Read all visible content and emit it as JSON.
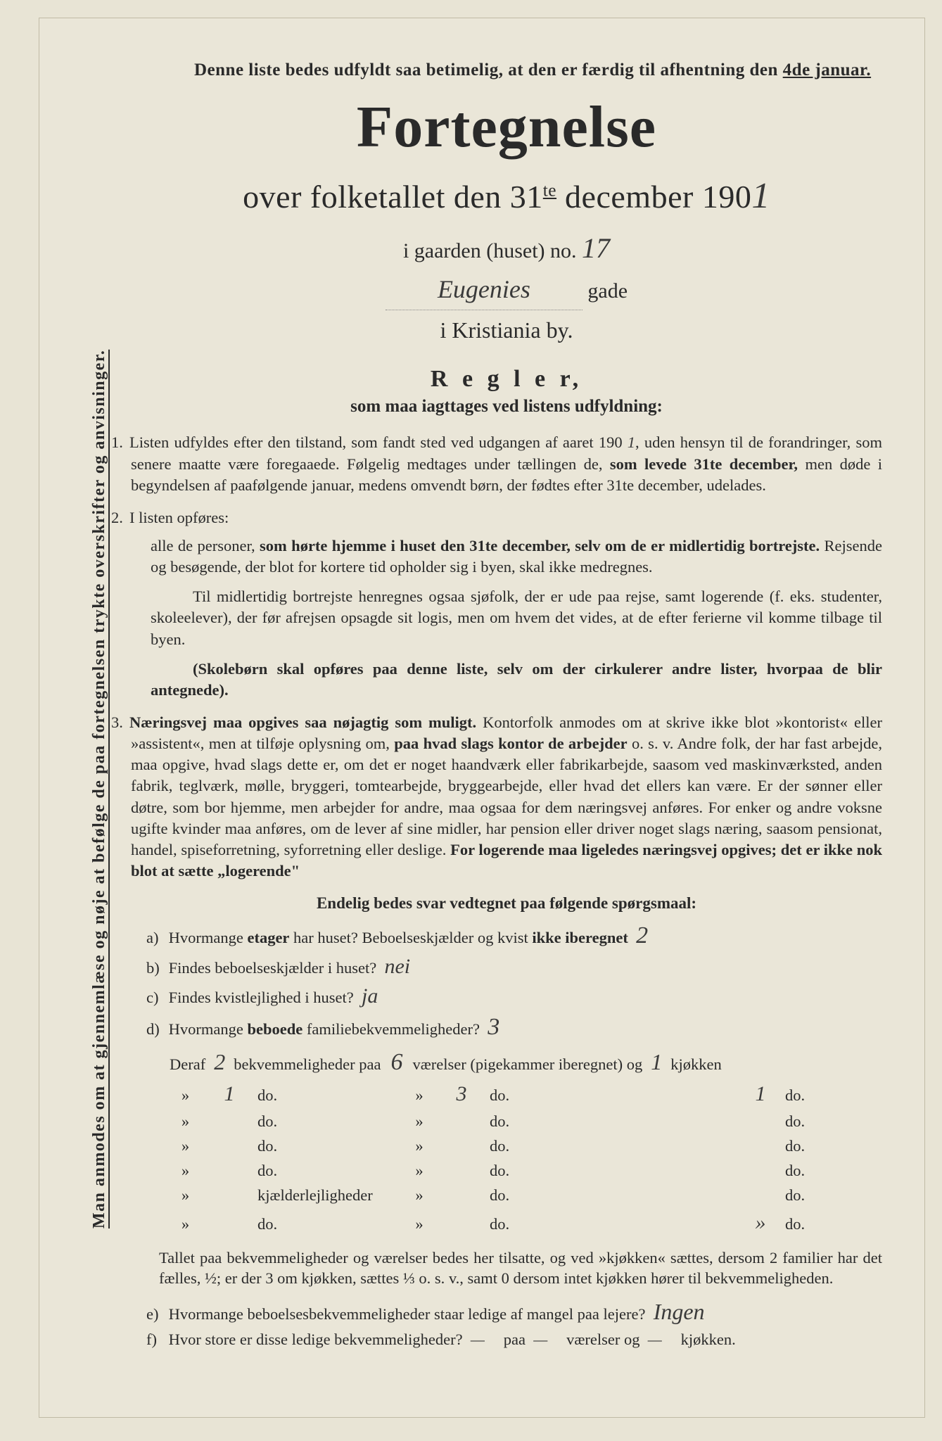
{
  "colors": {
    "paper": "#eae6d8",
    "ink": "#2a2a2a",
    "pencil": "#3a3a3a"
  },
  "sidenote": "Man anmodes om at gjennemlæse og nøje at befølge de paa fortegnelsen trykte overskrifter og anvisninger.",
  "topnote": {
    "line": "Denne liste bedes udfyldt saa betimelig, at den er færdig til afhentning den ",
    "date": "4de januar."
  },
  "title": "Fortegnelse",
  "subtitle_prefix": "over folketallet den 31",
  "subtitle_sup": "te",
  "subtitle_mid": " december 190",
  "year_digit": "1",
  "gaarden_label": "i gaarden (huset) no.",
  "house_no": "17",
  "street_name": "Eugenies",
  "street_suffix": "gade",
  "city_line": "i Kristiania by.",
  "regler": "R e g l e r,",
  "regler_sub": "som maa iagttages ved listens udfyldning:",
  "rule1": {
    "no": "1.",
    "a": "Listen udfyldes efter den tilstand, som fandt sted ved udgangen af aaret 190",
    "y": "1",
    "b": ", uden hensyn til de forandringer, som senere maatte være foregaaede. Følgelig medtages under tællingen de, ",
    "bold1": "som levede 31te december,",
    "c": " men døde i begyndelsen af paafølgende januar, medens omvendt børn, der fødtes efter 31te december, udelades."
  },
  "rule2": {
    "no": "2.",
    "a": "I listen opføres:",
    "b1": "alle de personer, ",
    "bold1": "som hørte hjemme i huset den 31te december, selv om de er midlertidig bortrejste.",
    "b2": " Rejsende og besøgende, der blot for kortere tid opholder sig i byen, skal ikke medregnes.",
    "c": "Til midlertidig bortrejste henregnes ogsaa sjøfolk, der er ude paa rejse, samt logerende (f. eks. studenter, skoleelever), der før afrejsen opsagde sit logis, men om hvem det vides, at de efter ferierne vil komme tilbage til byen.",
    "bold2": "(Skolebørn skal opføres paa denne liste, selv om der cirkulerer andre lister, hvorpaa de blir antegnede)."
  },
  "rule3": {
    "no": "3.",
    "bold1": "Næringsvej maa opgives saa nøjagtig som muligt.",
    "a": " Kontorfolk anmodes om at skrive ikke blot »kontorist« eller »assistent«, men at tilføje oplysning om, ",
    "bold2": "paa hvad slags kontor de arbejder",
    "b": " o. s. v.  Andre folk, der har fast arbejde, maa opgive, hvad slags dette er, om det er noget haandværk eller fabrikarbejde, saasom ved maskinværksted, anden fabrik, teglværk, mølle, bryggeri, tomtearbejde, bryggearbejde, eller hvad det ellers kan være.  Er der sønner eller døtre, som bor hjemme, men arbejder for andre, maa ogsaa for dem næringsvej anføres.  For enker og andre voksne ugifte kvinder maa anføres, om de lever af sine midler, har pension eller driver noget slags næring, saasom pensionat, handel, spiseforretning, syforretning eller deslige.  ",
    "bold3": "For logerende maa ligeledes næringsvej opgives; det er ikke nok blot at sætte „logerende\""
  },
  "subhead": "Endelig bedes svar vedtegnet paa følgende spørgsmaal:",
  "qa": {
    "l": "a)",
    "q": "Hvormange ",
    "b": "etager",
    "q2": " har huset?  Beboelseskjælder og kvist ",
    "b2": "ikke iberegnet",
    "ans": "2"
  },
  "qb": {
    "l": "b)",
    "q": "Findes beboelseskjælder i huset?",
    "ans": "nei"
  },
  "qc": {
    "l": "c)",
    "q": "Findes kvistlejlighed i huset?",
    "ans": "ja"
  },
  "qd": {
    "l": "d)",
    "q": "Hvormange ",
    "b": "beboede",
    "q2": " familiebekvemmeligheder?",
    "ans": "3"
  },
  "deraf": {
    "intro_a": "Deraf",
    "intro_n1": "2",
    "intro_b": "bekvemmeligheder paa",
    "intro_n2": "6",
    "intro_c": "værelser (pigekammer iberegnet) og",
    "intro_n3": "1",
    "intro_d": "kjøkken",
    "rows": [
      {
        "a": "1",
        "b": "do.",
        "c": "»",
        "d": "3",
        "e": "do.",
        "f": "1",
        "g": "do."
      },
      {
        "a": "",
        "b": "do.",
        "c": "»",
        "d": "",
        "e": "do.",
        "f": "",
        "g": "do."
      },
      {
        "a": "",
        "b": "do.",
        "c": "»",
        "d": "",
        "e": "do.",
        "f": "",
        "g": "do."
      },
      {
        "a": "",
        "b": "do.",
        "c": "»",
        "d": "",
        "e": "do.",
        "f": "",
        "g": "do."
      },
      {
        "a": "",
        "b": "kjælderlejligheder",
        "c": "»",
        "d": "",
        "e": "do.",
        "f": "",
        "g": "do."
      },
      {
        "a": "",
        "b": "do.",
        "c": "»",
        "d": "",
        "e": "do.",
        "f": "»",
        "g": "do."
      }
    ]
  },
  "footnote": "Tallet paa bekvemmeligheder og værelser bedes her tilsatte, og ved »kjøkken« sættes, dersom 2 familier har det fælles, ½; er der 3 om kjøkken, sættes ⅓ o. s. v., samt 0 dersom intet kjøkken hører til bekvemmeligheden.",
  "qe": {
    "l": "e)",
    "q": "Hvormange beboelsesbekvemmeligheder staar ledige af mangel paa lejere?",
    "ans": "Ingen"
  },
  "qf": {
    "l": "f)",
    "q1": "Hvor store er disse ledige bekvemmeligheder?",
    "a1": "—",
    "q2": "paa",
    "a2": "—",
    "q3": "værelser og",
    "a3": "—",
    "q4": "kjøkken."
  }
}
